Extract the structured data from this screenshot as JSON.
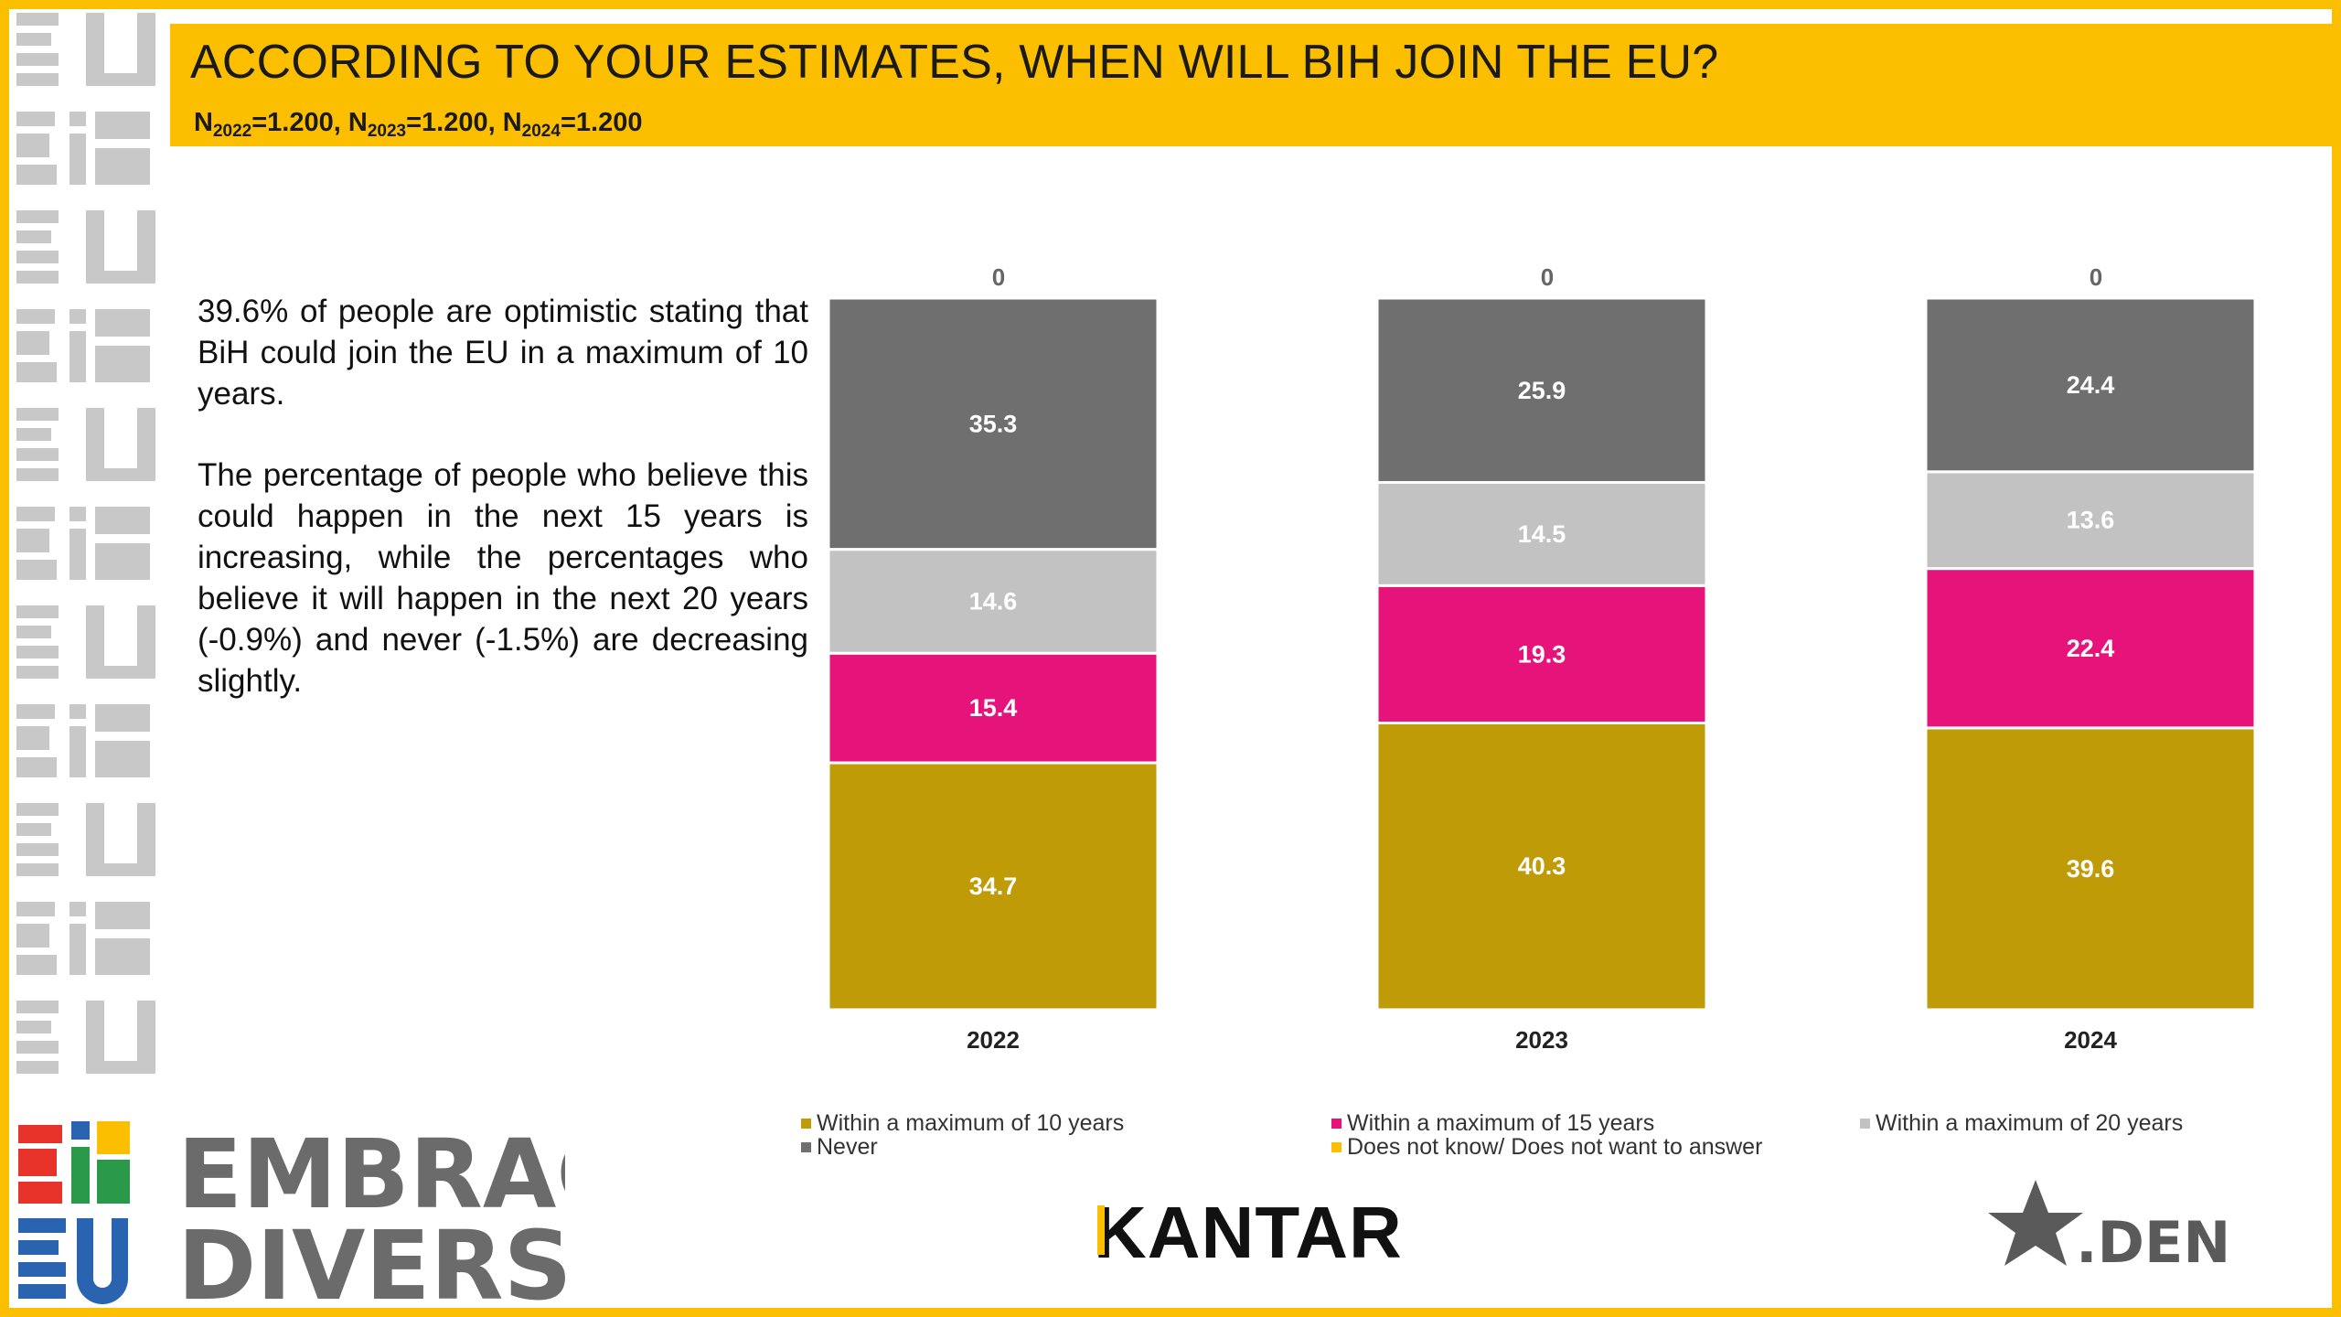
{
  "header": {
    "title": "ACCORDING TO YOUR ESTIMATES, WHEN WILL BIH JOIN THE EU?",
    "sample": [
      {
        "prefix": "N",
        "sub": "2022",
        "value": "=1.200, "
      },
      {
        "prefix": "N",
        "sub": "2023",
        "value": "=1.200, "
      },
      {
        "prefix": "N",
        "sub": "2024",
        "value": "=1.200"
      }
    ]
  },
  "narrative": {
    "p1": "39.6% of people are optimistic stating that BiH could join the EU in a maximum of 10 years.",
    "p2": "The percentage of people  who believe this could happen in the next 15 years is increasing, while the percentages who believe it will happen in the next 20 years (-0.9%) and never (-1.5%) are decreasing slightly."
  },
  "chart_data": {
    "type": "bar",
    "stacked": true,
    "categories": [
      "2022",
      "2023",
      "2024"
    ],
    "series": [
      {
        "name": "Within a maximum of 10 years",
        "color": "#bf9b07",
        "values": [
          34.7,
          40.3,
          39.6
        ]
      },
      {
        "name": "Within a maximum of 15 years",
        "color": "#e6137b",
        "values": [
          15.4,
          19.3,
          22.4
        ]
      },
      {
        "name": "Within a maximum of 20 years",
        "color": "#c2c2c2",
        "values": [
          14.6,
          14.5,
          13.6
        ]
      },
      {
        "name": "Never",
        "color": "#6f6f6f",
        "values": [
          35.3,
          25.9,
          24.4
        ]
      },
      {
        "name": "Does not know/ Does not want to answer",
        "color": "#fbbf00",
        "values": [
          0,
          0,
          0
        ]
      }
    ],
    "ylim": [
      0,
      100
    ],
    "legend_position": "bottom",
    "grid": false
  },
  "logos": {
    "brand_line1": "EMBRACE",
    "brand_line2": "DIVERSITY",
    "research": "KANTAR",
    "partner": ".DEN"
  },
  "colors": {
    "accent": "#fbbf00"
  }
}
